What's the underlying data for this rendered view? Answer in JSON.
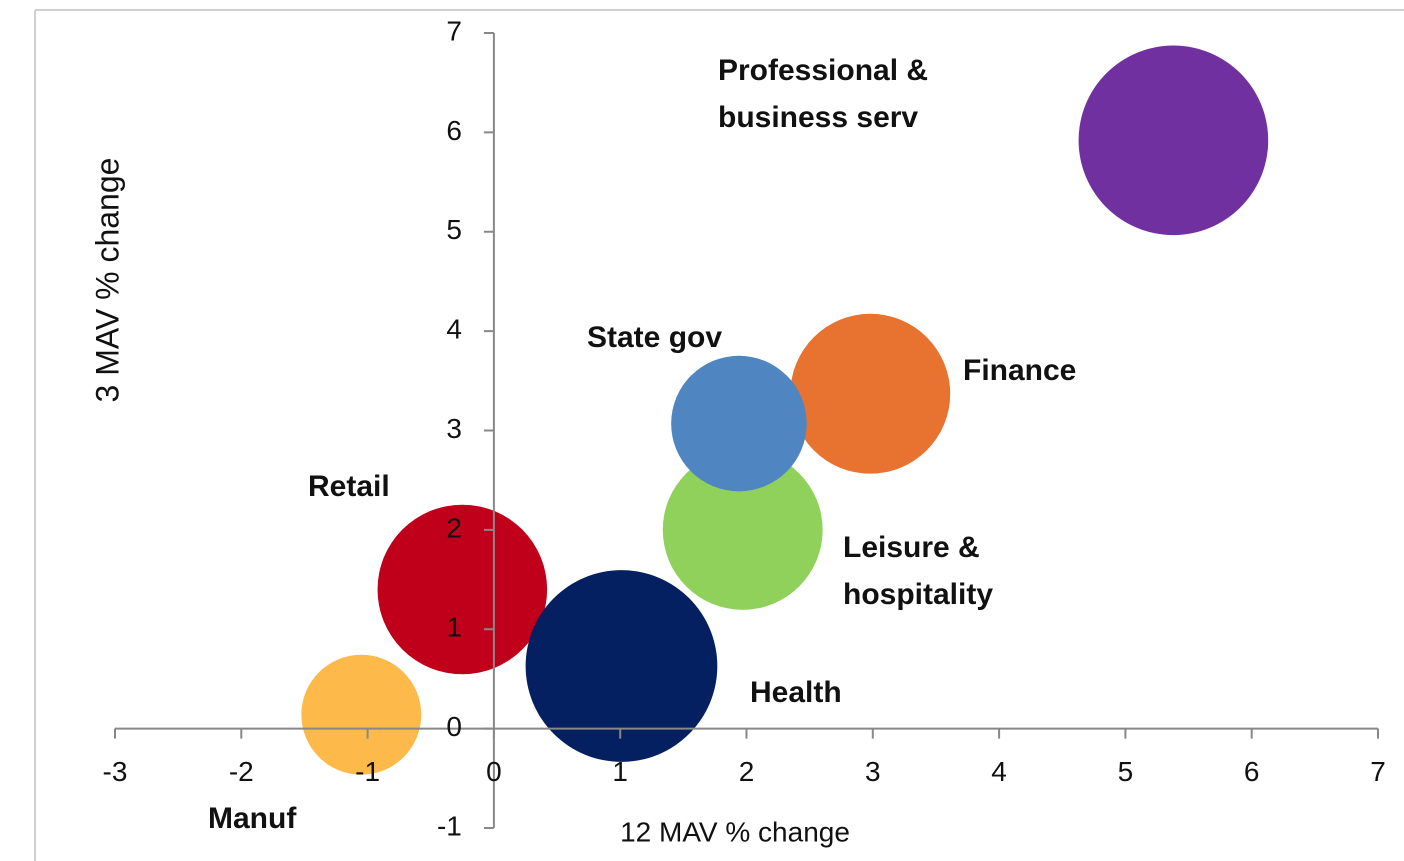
{
  "chart_data": {
    "type": "bubble",
    "x_label": "12 MAV % change",
    "y_label": "3 MAV % change",
    "xlim": [
      -3,
      7
    ],
    "xticks": [
      -3,
      -2,
      -1,
      0,
      1,
      2,
      3,
      4,
      5,
      6,
      7
    ],
    "ylim": [
      -1,
      7
    ],
    "yticks": [
      -1,
      0,
      1,
      2,
      3,
      4,
      5,
      6,
      7
    ],
    "series": [
      {
        "name": "Manuf",
        "color": "#fdb94a",
        "x": -1.05,
        "y": 0.14,
        "size": 3.6
      },
      {
        "name": "Retail",
        "color": "#c0001b",
        "x": -0.25,
        "y": 1.4,
        "size": 7.2
      },
      {
        "name": "Health",
        "color": "#042060",
        "x": 1.01,
        "y": 0.63,
        "size": 9.2
      },
      {
        "name": "Leisure & hospitality",
        "color": "#8fd15a",
        "x": 1.97,
        "y": 2.0,
        "size": 6.4
      },
      {
        "name": "Finance",
        "color": "#e8722f",
        "x": 2.98,
        "y": 3.37,
        "size": 6.4
      },
      {
        "name": "State gov",
        "color": "#4f86c1",
        "x": 1.94,
        "y": 3.07,
        "size": 4.6
      },
      {
        "name": "Professional & business serv",
        "color": "#7030a0",
        "x": 5.38,
        "y": 5.92,
        "size": 9.0
      }
    ]
  }
}
